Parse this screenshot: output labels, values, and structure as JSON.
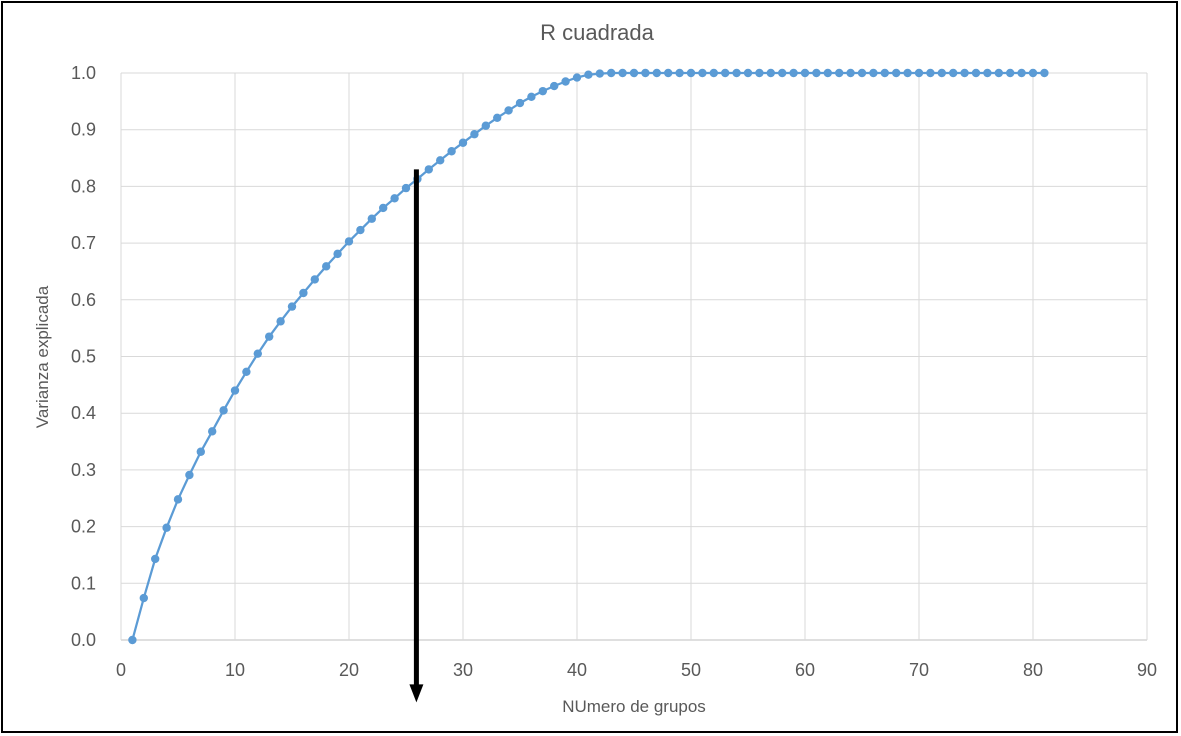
{
  "chart_data": {
    "type": "line",
    "title": "R cuadrada",
    "xlabel": "NUmero de grupos",
    "ylabel": "Varianza explicada",
    "xlim": [
      0,
      90
    ],
    "ylim": [
      0,
      1.0
    ],
    "xticks": [
      "0",
      "10",
      "20",
      "30",
      "40",
      "50",
      "60",
      "70",
      "80",
      "90"
    ],
    "yticks": [
      "0.0",
      "0.1",
      "0.2",
      "0.3",
      "0.4",
      "0.5",
      "0.6",
      "0.7",
      "0.8",
      "0.9",
      "1.0"
    ],
    "grid": true,
    "legend": "none",
    "series_color": "#5B9BD5",
    "gridline_color": "#D9D9D9",
    "annotation": {
      "type": "arrow",
      "x": 26,
      "y_from": 0.83,
      "y_to": -0.11,
      "color": "#000000"
    },
    "series": [
      {
        "x": [
          1,
          2,
          3,
          4,
          5,
          6,
          7,
          8,
          9,
          10,
          11,
          12,
          13,
          14,
          15,
          16,
          17,
          18,
          19,
          20,
          21,
          22,
          23,
          24,
          25,
          26,
          27,
          28,
          29,
          30,
          31,
          32,
          33,
          34,
          35,
          36,
          37,
          38,
          39,
          40,
          41,
          42,
          43,
          44,
          45,
          46,
          47,
          48,
          49,
          50,
          51,
          52,
          53,
          54,
          55,
          56,
          57,
          58,
          59,
          60,
          61,
          62,
          63,
          64,
          65,
          66,
          67,
          68,
          69,
          70,
          71,
          72,
          73,
          74,
          75,
          76,
          77,
          78,
          79,
          80,
          81
        ],
        "values": [
          0.0,
          0.074,
          0.143,
          0.198,
          0.248,
          0.291,
          0.332,
          0.368,
          0.405,
          0.44,
          0.473,
          0.505,
          0.535,
          0.562,
          0.588,
          0.612,
          0.636,
          0.659,
          0.681,
          0.703,
          0.723,
          0.743,
          0.762,
          0.779,
          0.797,
          0.813,
          0.83,
          0.846,
          0.862,
          0.877,
          0.892,
          0.907,
          0.921,
          0.934,
          0.947,
          0.958,
          0.968,
          0.977,
          0.985,
          0.992,
          0.997,
          0.999,
          1.0,
          1.0,
          1.0,
          1.0,
          1.0,
          1.0,
          1.0,
          1.0,
          1.0,
          1.0,
          1.0,
          1.0,
          1.0,
          1.0,
          1.0,
          1.0,
          1.0,
          1.0,
          1.0,
          1.0,
          1.0,
          1.0,
          1.0,
          1.0,
          1.0,
          1.0,
          1.0,
          1.0,
          1.0,
          1.0,
          1.0,
          1.0,
          1.0,
          1.0,
          1.0,
          1.0,
          1.0,
          1.0,
          1.0
        ]
      }
    ]
  }
}
